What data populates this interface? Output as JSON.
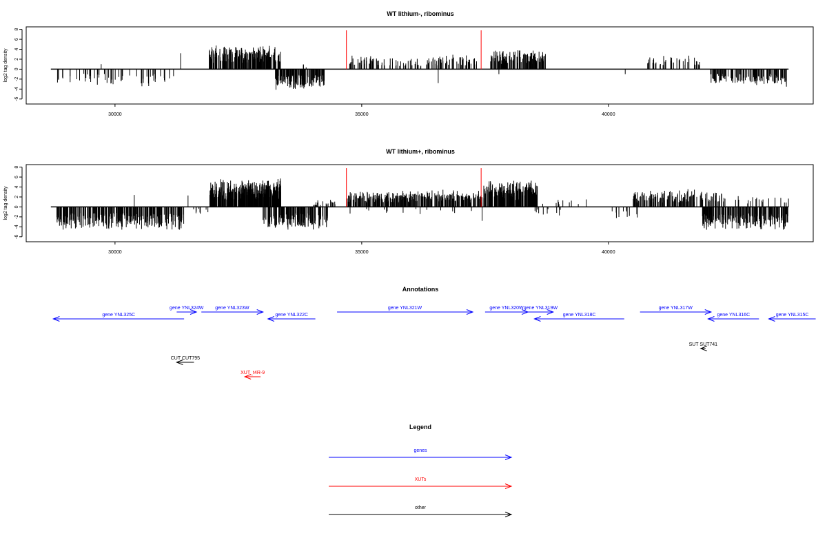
{
  "colors": {
    "gene": "#0000ff",
    "xut": "#ff0000",
    "other": "#000000",
    "marker": "#ff0000",
    "bars": "#000000"
  },
  "chart_data": [
    {
      "type": "bar",
      "title": "WT lithium-, ribominus",
      "ylabel": "log2 tag density",
      "xlim": [
        28200,
        44150
      ],
      "ylim": [
        -7,
        8.5
      ],
      "xticks": [
        30000,
        35000,
        40000
      ],
      "yticks": [
        -6,
        -4,
        -2,
        0,
        2,
        4,
        6,
        8
      ],
      "markers_x": [
        34690,
        37420
      ],
      "marker_height": 7.8,
      "features": [
        {
          "x": [
            28710,
            28710
          ],
          "v": 3.1
        },
        {
          "x": [
            29720,
            29720
          ],
          "v": 1.0
        },
        {
          "x": [
            31330,
            31330
          ],
          "v": 3.2
        },
        {
          "x": [
            31900,
            33360
          ],
          "v": 5.0,
          "n": 220,
          "seed": 11
        },
        {
          "x": [
            33800,
            33900
          ],
          "v": 1.2,
          "n": 4,
          "seed": 12
        },
        {
          "x": [
            34750,
            35350
          ],
          "v": 3.0,
          "n": 40,
          "seed": 13
        },
        {
          "x": [
            35400,
            36200
          ],
          "v": 2.2,
          "n": 30,
          "seed": 14
        },
        {
          "x": [
            36300,
            37330
          ],
          "v": 3.0,
          "n": 60,
          "seed": 15
        },
        {
          "x": [
            37600,
            38730
          ],
          "v": 4.2,
          "n": 120,
          "seed": 16
        },
        {
          "x": [
            40700,
            41850
          ],
          "v": 3.0,
          "n": 40,
          "seed": 17
        },
        {
          "x": [
            28750,
            31300
          ],
          "v": -3.6,
          "n": 60,
          "seed": 18
        },
        {
          "x": [
            33250,
            34250
          ],
          "v": -4.4,
          "n": 140,
          "seed": 19
        },
        {
          "x": [
            36550,
            36550
          ],
          "v": -2.8
        },
        {
          "x": [
            37780,
            37780
          ],
          "v": -1.0
        },
        {
          "x": [
            40340,
            40340
          ],
          "v": -1.0
        },
        {
          "x": [
            42070,
            43620
          ],
          "v": -3.8,
          "n": 130,
          "seed": 20
        }
      ]
    },
    {
      "type": "bar",
      "title": "WT lithium+, ribominus",
      "ylabel": "log2 tag density",
      "xlim": [
        28200,
        44150
      ],
      "ylim": [
        -7,
        8.5
      ],
      "xticks": [
        30000,
        35000,
        40000
      ],
      "yticks": [
        -6,
        -4,
        -2,
        0,
        2,
        4,
        6,
        8
      ],
      "markers_x": [
        34690,
        37420
      ],
      "marker_height": 7.8,
      "features": [
        {
          "x": [
            30390,
            30390
          ],
          "v": 2.4
        },
        {
          "x": [
            31480,
            31480
          ],
          "v": 2.3
        },
        {
          "x": [
            31900,
            33380
          ],
          "v": 5.8,
          "n": 380,
          "seed": 21
        },
        {
          "x": [
            34000,
            34500
          ],
          "v": 1.5,
          "n": 20,
          "seed": 22
        },
        {
          "x": [
            34700,
            37440
          ],
          "v": 3.5,
          "n": 320,
          "seed": 23
        },
        {
          "x": [
            37470,
            38560
          ],
          "v": 5.5,
          "n": 260,
          "seed": 24
        },
        {
          "x": [
            38600,
            39600
          ],
          "v": 2.0,
          "n": 10,
          "seed": 25
        },
        {
          "x": [
            40500,
            42400
          ],
          "v": 3.6,
          "n": 150,
          "seed": 26
        },
        {
          "x": [
            42500,
            43650
          ],
          "v": 2.6,
          "n": 20,
          "seed": 27
        },
        {
          "x": [
            28700,
            31400
          ],
          "v": -4.8,
          "n": 300,
          "seed": 28
        },
        {
          "x": [
            31550,
            31900
          ],
          "v": -1.5,
          "n": 8,
          "seed": 29
        },
        {
          "x": [
            33000,
            34330
          ],
          "v": -4.8,
          "n": 180,
          "seed": 30
        },
        {
          "x": [
            34700,
            37300
          ],
          "v": -1.6,
          "n": 14,
          "seed": 31
        },
        {
          "x": [
            37440,
            37440
          ],
          "v": -2.8
        },
        {
          "x": [
            38500,
            39100
          ],
          "v": -1.8,
          "n": 10,
          "seed": 32
        },
        {
          "x": [
            40050,
            40600
          ],
          "v": -2.5,
          "n": 12,
          "seed": 33
        },
        {
          "x": [
            41900,
            43650
          ],
          "v": -5.0,
          "n": 220,
          "seed": 34
        }
      ]
    }
  ],
  "annotations": {
    "title": "Annotations",
    "items": [
      {
        "label": "gene YNL325C",
        "kind": "gene",
        "dir": "left",
        "x1": 28750,
        "x2": 31400,
        "row": 1
      },
      {
        "label": "gene YNL324W",
        "kind": "gene",
        "dir": "right",
        "x1": 31250,
        "x2": 31650,
        "row": 0
      },
      {
        "label": "gene YNL323W",
        "kind": "gene",
        "dir": "right",
        "x1": 31750,
        "x2": 33000,
        "row": 0
      },
      {
        "label": "gene YNL322C",
        "kind": "gene",
        "dir": "left",
        "x1": 33100,
        "x2": 34060,
        "row": 1
      },
      {
        "label": "gene YNL321W",
        "kind": "gene",
        "dir": "right",
        "x1": 34500,
        "x2": 37250,
        "row": 0
      },
      {
        "label": "gene YNL320W",
        "kind": "gene",
        "dir": "right",
        "x1": 37500,
        "x2": 38370,
        "row": 0
      },
      {
        "label": "gene YNL319W",
        "kind": "gene",
        "dir": "right",
        "x1": 38370,
        "x2": 38880,
        "row": 0
      },
      {
        "label": "gene YNL318C",
        "kind": "gene",
        "dir": "left",
        "x1": 38500,
        "x2": 40320,
        "row": 1
      },
      {
        "label": "gene YNL317W",
        "kind": "gene",
        "dir": "right",
        "x1": 40640,
        "x2": 42080,
        "row": 0
      },
      {
        "label": "gene YNL316C",
        "kind": "gene",
        "dir": "left",
        "x1": 42020,
        "x2": 43050,
        "row": 1
      },
      {
        "label": "gene YNL315C",
        "kind": "gene",
        "dir": "left",
        "x1": 43250,
        "x2": 44200,
        "row": 1
      },
      {
        "label": "SUT SUT741",
        "kind": "other",
        "dir": "left",
        "x1": 41870,
        "x2": 41970,
        "row": 3
      },
      {
        "label": "CUT CUT795",
        "kind": "other",
        "dir": "left",
        "x1": 31250,
        "x2": 31600,
        "row": 4
      },
      {
        "label": "XUT_t4R-9",
        "kind": "xut",
        "dir": "left",
        "x1": 32630,
        "x2": 32950,
        "row": 5
      }
    ]
  },
  "legend": {
    "title": "Legend",
    "items": [
      {
        "label": "genes",
        "kind": "gene"
      },
      {
        "label": "XUTs",
        "kind": "xut"
      },
      {
        "label": "other",
        "kind": "other"
      }
    ]
  }
}
